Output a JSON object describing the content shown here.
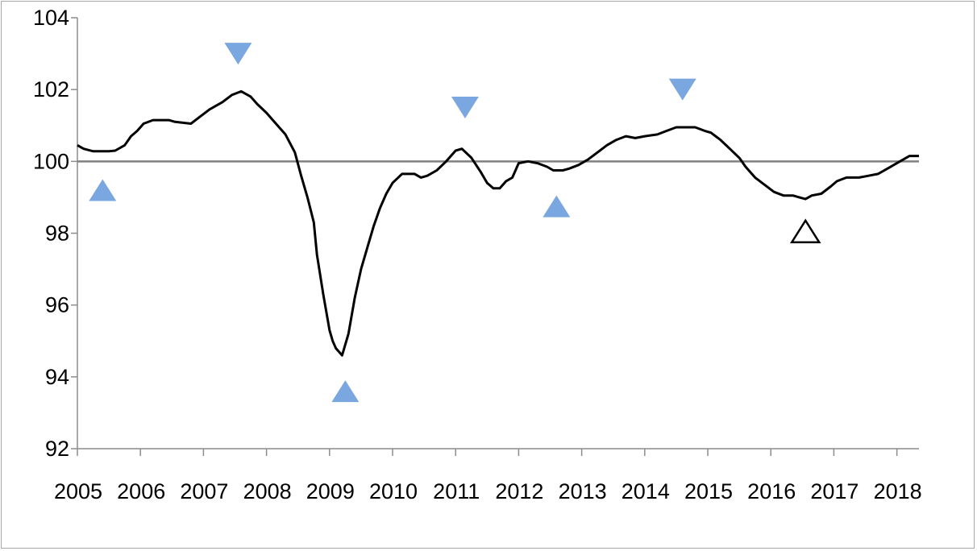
{
  "chart_data": {
    "type": "line",
    "title": "",
    "xlabel": "",
    "ylabel": "",
    "xlim": [
      2005,
      2018.35
    ],
    "ylim": [
      92,
      104
    ],
    "y_ticks": [
      "92",
      "94",
      "96",
      "98",
      "100",
      "102",
      "104"
    ],
    "x_ticks": [
      "2005",
      "2006",
      "2007",
      "2008",
      "2009",
      "2010",
      "2011",
      "2012",
      "2013",
      "2014",
      "2015",
      "2016",
      "2017",
      "2018"
    ],
    "reference_line": 100,
    "grid": false,
    "legend": "none",
    "colors": {
      "line": "#000000",
      "reference": "#808080",
      "marker": "#7aa7e0",
      "marker_open": "#000000",
      "axis": "#8c8c8c"
    },
    "series": [
      {
        "points": [
          [
            2005.0,
            100.45
          ],
          [
            2005.1,
            100.35
          ],
          [
            2005.25,
            100.28
          ],
          [
            2005.5,
            100.28
          ],
          [
            2005.6,
            100.3
          ],
          [
            2005.75,
            100.45
          ],
          [
            2005.85,
            100.7
          ],
          [
            2005.95,
            100.85
          ],
          [
            2006.05,
            101.05
          ],
          [
            2006.2,
            101.15
          ],
          [
            2006.45,
            101.15
          ],
          [
            2006.55,
            101.1
          ],
          [
            2006.8,
            101.05
          ],
          [
            2006.95,
            101.25
          ],
          [
            2007.1,
            101.45
          ],
          [
            2007.3,
            101.65
          ],
          [
            2007.45,
            101.85
          ],
          [
            2007.6,
            101.95
          ],
          [
            2007.75,
            101.8
          ],
          [
            2007.85,
            101.6
          ],
          [
            2008.0,
            101.35
          ],
          [
            2008.15,
            101.05
          ],
          [
            2008.3,
            100.75
          ],
          [
            2008.45,
            100.25
          ],
          [
            2008.55,
            99.6
          ],
          [
            2008.65,
            99.0
          ],
          [
            2008.75,
            98.3
          ],
          [
            2008.8,
            97.4
          ],
          [
            2008.9,
            96.3
          ],
          [
            2009.0,
            95.3
          ],
          [
            2009.05,
            95.0
          ],
          [
            2009.1,
            94.8
          ],
          [
            2009.2,
            94.6
          ],
          [
            2009.3,
            95.2
          ],
          [
            2009.4,
            96.2
          ],
          [
            2009.5,
            97.0
          ],
          [
            2009.6,
            97.6
          ],
          [
            2009.7,
            98.2
          ],
          [
            2009.8,
            98.7
          ],
          [
            2009.9,
            99.1
          ],
          [
            2010.0,
            99.4
          ],
          [
            2010.15,
            99.65
          ],
          [
            2010.35,
            99.65
          ],
          [
            2010.45,
            99.55
          ],
          [
            2010.55,
            99.6
          ],
          [
            2010.7,
            99.75
          ],
          [
            2010.85,
            100.0
          ],
          [
            2011.0,
            100.3
          ],
          [
            2011.1,
            100.35
          ],
          [
            2011.25,
            100.1
          ],
          [
            2011.4,
            99.7
          ],
          [
            2011.5,
            99.4
          ],
          [
            2011.6,
            99.25
          ],
          [
            2011.7,
            99.25
          ],
          [
            2011.8,
            99.45
          ],
          [
            2011.9,
            99.55
          ],
          [
            2012.0,
            99.95
          ],
          [
            2012.15,
            100.0
          ],
          [
            2012.3,
            99.95
          ],
          [
            2012.45,
            99.85
          ],
          [
            2012.55,
            99.75
          ],
          [
            2012.7,
            99.75
          ],
          [
            2012.8,
            99.8
          ],
          [
            2012.95,
            99.9
          ],
          [
            2013.1,
            100.05
          ],
          [
            2013.25,
            100.25
          ],
          [
            2013.4,
            100.45
          ],
          [
            2013.55,
            100.6
          ],
          [
            2013.7,
            100.7
          ],
          [
            2013.85,
            100.65
          ],
          [
            2014.0,
            100.7
          ],
          [
            2014.2,
            100.75
          ],
          [
            2014.35,
            100.85
          ],
          [
            2014.5,
            100.95
          ],
          [
            2014.65,
            100.95
          ],
          [
            2014.8,
            100.95
          ],
          [
            2014.95,
            100.85
          ],
          [
            2015.05,
            100.8
          ],
          [
            2015.2,
            100.6
          ],
          [
            2015.35,
            100.35
          ],
          [
            2015.5,
            100.1
          ],
          [
            2015.6,
            99.85
          ],
          [
            2015.75,
            99.55
          ],
          [
            2015.9,
            99.35
          ],
          [
            2016.05,
            99.15
          ],
          [
            2016.2,
            99.05
          ],
          [
            2016.35,
            99.05
          ],
          [
            2016.45,
            99.0
          ],
          [
            2016.55,
            98.95
          ],
          [
            2016.65,
            99.05
          ],
          [
            2016.8,
            99.1
          ],
          [
            2016.95,
            99.3
          ],
          [
            2017.05,
            99.45
          ],
          [
            2017.2,
            99.55
          ],
          [
            2017.4,
            99.55
          ],
          [
            2017.55,
            99.6
          ],
          [
            2017.7,
            99.65
          ],
          [
            2017.85,
            99.8
          ],
          [
            2018.0,
            99.95
          ],
          [
            2018.1,
            100.05
          ],
          [
            2018.2,
            100.15
          ],
          [
            2018.35,
            100.15
          ]
        ]
      }
    ],
    "markers": [
      {
        "symbol": "triangle-up",
        "x": 2005.4,
        "y": 99.2,
        "filled": true
      },
      {
        "symbol": "triangle-down",
        "x": 2007.55,
        "y": 103.0,
        "filled": true
      },
      {
        "symbol": "triangle-up",
        "x": 2009.25,
        "y": 93.6,
        "filled": true
      },
      {
        "symbol": "triangle-down",
        "x": 2011.15,
        "y": 101.5,
        "filled": true
      },
      {
        "symbol": "triangle-up",
        "x": 2012.6,
        "y": 98.75,
        "filled": true
      },
      {
        "symbol": "triangle-down",
        "x": 2014.6,
        "y": 102.0,
        "filled": true
      },
      {
        "symbol": "triangle-up",
        "x": 2016.55,
        "y": 98.05,
        "filled": false
      }
    ]
  }
}
